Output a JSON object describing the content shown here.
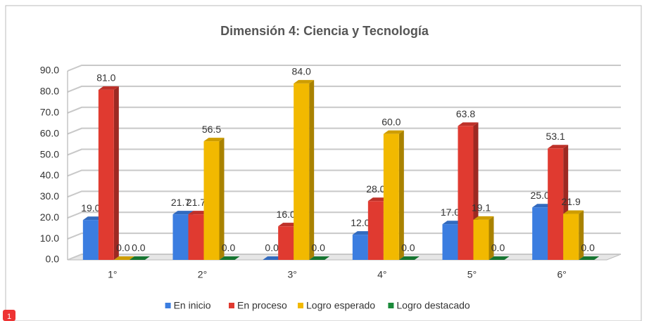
{
  "badge": "1",
  "chart_data": {
    "type": "bar3d",
    "title": "Dimensión 4: Ciencia y Tecnología",
    "categories": [
      "1°",
      "2°",
      "3°",
      "4°",
      "5°",
      "6°"
    ],
    "series": [
      {
        "name": "En inicio",
        "color": "#3b7de0",
        "values": [
          19,
          21.7,
          0,
          12,
          17,
          25
        ],
        "value_labels": [
          "19.0",
          "21.7",
          "0.0",
          "12.0",
          "17.0",
          "25.0"
        ]
      },
      {
        "name": "En proceso",
        "color": "#e03a30",
        "values": [
          81,
          21.7,
          16,
          28,
          63.8,
          53.1
        ],
        "value_labels": [
          "81.0",
          "21.7",
          "16.0",
          "28.0",
          "63.8",
          "53.1"
        ]
      },
      {
        "name": "Logro esperado",
        "color": "#f2b900",
        "values": [
          0,
          56.5,
          84,
          60,
          19.1,
          21.9
        ],
        "value_labels": [
          "0.0",
          "56.5",
          "84.0",
          "60.0",
          "19.1",
          "21.9"
        ]
      },
      {
        "name": "Logro destacado",
        "color": "#1a8a3a",
        "values": [
          0,
          0,
          0,
          0,
          0,
          0
        ],
        "value_labels": [
          "0.0",
          "0.0",
          "0.0",
          "0.0",
          "0.0",
          "0.0"
        ]
      }
    ],
    "ylim": [
      0,
      90
    ],
    "yticks": [
      {
        "value": 0,
        "label": "0.0"
      },
      {
        "value": 10,
        "label": "10.0"
      },
      {
        "value": 20,
        "label": "20.0"
      },
      {
        "value": 30,
        "label": "30.0"
      },
      {
        "value": 40,
        "label": "40.0"
      },
      {
        "value": 50,
        "label": "50.0"
      },
      {
        "value": 60,
        "label": "60.0"
      },
      {
        "value": 70,
        "label": "70.0"
      },
      {
        "value": 80,
        "label": "80.0"
      },
      {
        "value": 90,
        "label": "90.0"
      }
    ],
    "grid": true,
    "legend": "bottom"
  }
}
